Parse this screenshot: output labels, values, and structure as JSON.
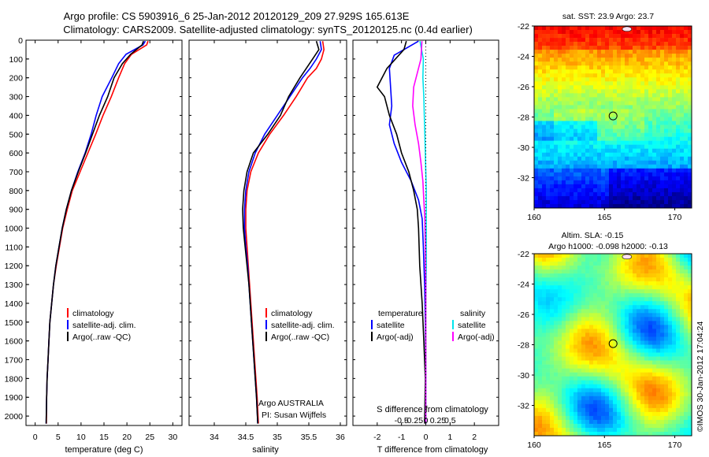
{
  "header": {
    "title_line1": "Argo profile: CS 5903916_6 25-Jan-2012 20120129_209 27.929S 165.613E",
    "title_line2": "Climatology: CARS2009. Satellite-adjusted climatology: synTS_20120125.nc (0.4d earlier)"
  },
  "colors": {
    "climatology": "#ff0000",
    "satellite": "#0000ff",
    "argo": "#000000",
    "sat_salinity": "#00e5ee",
    "argo_salinity_adj": "#ff00ff"
  },
  "chart_data": [
    {
      "type": "line",
      "name": "temperature-profile",
      "xlabel": "temperature (deg C)",
      "ylabel": "",
      "xlim": [
        -2,
        32
      ],
      "ylim": [
        2050,
        0
      ],
      "xticks": [
        0,
        5,
        10,
        15,
        20,
        25,
        30
      ],
      "yticks": [
        0,
        100,
        200,
        300,
        400,
        500,
        600,
        700,
        800,
        900,
        1000,
        1100,
        1200,
        1300,
        1400,
        1500,
        1600,
        1700,
        1800,
        1900,
        2000
      ],
      "legend": {
        "position": "middle-left",
        "entries": [
          "climatology",
          "satellite-adj. clim.",
          "Argo(..raw -QC)"
        ]
      },
      "series": [
        {
          "name": "climatology",
          "color": "#ff0000",
          "x": [
            24.6,
            24.3,
            21,
            19.5,
            18.2,
            16.6,
            14.8,
            13.2,
            11.5,
            9.8,
            8.1,
            7.0,
            6.0,
            5.3,
            4.6,
            4.0,
            3.6,
            3.2,
            3.0,
            2.8,
            2.6,
            2.5,
            2.45
          ],
          "y": [
            5,
            25,
            75,
            125,
            200,
            300,
            400,
            500,
            600,
            700,
            800,
            900,
            1000,
            1100,
            1200,
            1300,
            1400,
            1500,
            1600,
            1700,
            1800,
            1900,
            2040
          ]
        },
        {
          "name": "satellite-adj. clim.",
          "color": "#0000ff",
          "x": [
            24.0,
            23.5,
            19.8,
            18.2,
            16.7,
            14.6,
            13.3,
            12.2,
            10.9,
            9.3,
            7.9,
            6.8,
            5.9,
            5.2,
            4.5,
            4.0,
            3.6,
            3.2,
            3.0,
            2.8,
            2.6,
            2.5,
            2.4
          ],
          "y": [
            5,
            25,
            75,
            125,
            200,
            300,
            400,
            500,
            600,
            700,
            800,
            900,
            1000,
            1100,
            1200,
            1300,
            1400,
            1500,
            1600,
            1700,
            1800,
            1900,
            2040
          ]
        },
        {
          "name": "Argo(..raw -QC)",
          "color": "#000000",
          "x": [
            23.6,
            23.3,
            20.8,
            19.0,
            17.2,
            15.8,
            14.0,
            12.5,
            11.0,
            9.4,
            7.9,
            6.8,
            5.9,
            5.2,
            4.5,
            4.0,
            3.6,
            3.2,
            3.0,
            2.8,
            2.6,
            2.5,
            2.4
          ],
          "y": [
            5,
            25,
            75,
            125,
            200,
            300,
            400,
            500,
            600,
            700,
            800,
            900,
            1000,
            1100,
            1200,
            1300,
            1400,
            1500,
            1600,
            1700,
            1800,
            1900,
            2040
          ]
        }
      ]
    },
    {
      "type": "line",
      "name": "salinity-profile",
      "xlabel": "salinity",
      "ylabel": "",
      "xlim": [
        33.6,
        36.1
      ],
      "ylim": [
        2050,
        0
      ],
      "xticks": [
        34,
        34.5,
        35,
        35.5,
        36
      ],
      "legend": {
        "position": "middle-right",
        "entries": [
          "climatology",
          "satellite-adj. clim.",
          "Argo(..raw -QC)"
        ]
      },
      "annotation": {
        "line1": "Argo AUSTRALIA",
        "line2": "PI: Susan Wijffels"
      },
      "series": [
        {
          "name": "climatology",
          "color": "#ff0000",
          "x": [
            35.72,
            35.74,
            35.7,
            35.62,
            35.48,
            35.3,
            35.1,
            34.88,
            34.7,
            34.58,
            34.52,
            34.5,
            34.5,
            34.52,
            34.54,
            34.56,
            34.58,
            34.6,
            34.62,
            34.64,
            34.66,
            34.68,
            34.7
          ],
          "y": [
            5,
            50,
            100,
            150,
            200,
            300,
            400,
            500,
            600,
            700,
            800,
            900,
            1000,
            1100,
            1200,
            1300,
            1400,
            1500,
            1600,
            1700,
            1800,
            1900,
            2040
          ]
        },
        {
          "name": "satellite-adj. clim.",
          "color": "#0000ff",
          "x": [
            35.68,
            35.7,
            35.62,
            35.52,
            35.4,
            35.2,
            35.0,
            34.8,
            34.65,
            34.55,
            34.5,
            34.48,
            34.48,
            34.5,
            34.53,
            34.55,
            34.57,
            34.59,
            34.61,
            34.63,
            34.65,
            34.67,
            34.69
          ],
          "y": [
            5,
            50,
            100,
            150,
            200,
            300,
            400,
            500,
            600,
            700,
            800,
            900,
            1000,
            1100,
            1200,
            1300,
            1400,
            1500,
            1600,
            1700,
            1800,
            1900,
            2040
          ]
        },
        {
          "name": "Argo(..raw -QC)",
          "color": "#000000",
          "x": [
            35.62,
            35.66,
            35.56,
            35.46,
            35.36,
            35.18,
            35.05,
            34.85,
            34.62,
            34.52,
            34.47,
            34.45,
            34.46,
            34.49,
            34.52,
            34.55,
            34.57,
            34.59,
            34.61,
            34.63,
            34.65,
            34.67,
            34.69
          ],
          "y": [
            5,
            50,
            100,
            150,
            200,
            300,
            400,
            500,
            600,
            700,
            800,
            900,
            1000,
            1100,
            1200,
            1300,
            1400,
            1500,
            1600,
            1700,
            1800,
            1900,
            2040
          ]
        }
      ]
    },
    {
      "type": "line",
      "name": "difference-profile",
      "xlabel": "T difference from climatology",
      "xlabel_top": "S difference from climatology",
      "xlim": [
        -3,
        3
      ],
      "ylim": [
        2050,
        0
      ],
      "xticks_T": [
        -2,
        -1,
        0,
        1,
        2
      ],
      "xticks_S": [
        -0.5,
        -0.25,
        0,
        0.25,
        0.5
      ],
      "xticks_S_labels": [
        "-0.5",
        "-0.25",
        "0",
        "0.25",
        "0.5"
      ],
      "zero_line": "dotted",
      "legend": {
        "position": "middle",
        "temperature_header": "temperature",
        "salinity_header": "salinity",
        "entries": [
          "satellite",
          "Argo(-adj)",
          "satellite",
          "Argo(-adj)"
        ]
      },
      "series": [
        {
          "name": "temperature satellite",
          "color": "#0000ff",
          "x": [
            -0.3,
            -1.3,
            -1.5,
            -1.45,
            -1.4,
            -1.5,
            -1.3,
            -1.0,
            -0.6,
            -0.3,
            -0.15,
            -0.1,
            -0.05,
            -0.02,
            0,
            0
          ],
          "y": [
            5,
            80,
            150,
            250,
            350,
            450,
            550,
            650,
            750,
            850,
            950,
            1100,
            1300,
            1500,
            1800,
            2040
          ]
        },
        {
          "name": "temperature Argo(-adj)",
          "color": "#000000",
          "x": [
            -0.8,
            -0.9,
            -1.6,
            -2.0,
            -1.7,
            -1.5,
            -1.2,
            -1.0,
            -0.7,
            -0.5,
            -0.35,
            -0.3,
            -0.25,
            -0.15,
            -0.08,
            -0.02,
            -0.05
          ],
          "y": [
            5,
            50,
            150,
            250,
            300,
            400,
            500,
            600,
            700,
            800,
            900,
            1000,
            1200,
            1400,
            1600,
            1800,
            2040
          ]
        },
        {
          "name": "salinity satellite",
          "color": "#00e5ee",
          "x": [
            -0.12,
            -0.05,
            -0.06,
            -0.04,
            -0.03,
            -0.02,
            -0.01,
            0.0,
            0.01,
            0.01,
            0.01,
            0.01,
            0.0,
            0.0,
            0.0,
            0.0
          ],
          "y": [
            5,
            100,
            200,
            300,
            400,
            500,
            600,
            700,
            800,
            900,
            1000,
            1200,
            1400,
            1600,
            1800,
            2040
          ]
        },
        {
          "name": "salinity Argo(-adj)",
          "color": "#ff00ff",
          "x": [
            -0.08,
            -0.1,
            -0.25,
            -0.27,
            -0.22,
            -0.15,
            -0.1,
            -0.06,
            -0.04,
            -0.02,
            -0.01,
            0.0,
            0.0,
            0.0,
            0.0
          ],
          "y": [
            5,
            100,
            250,
            350,
            450,
            550,
            650,
            750,
            850,
            950,
            1100,
            1300,
            1500,
            1700,
            2040
          ]
        }
      ]
    },
    {
      "type": "heatmap",
      "name": "sst-map",
      "title": "sat. SST: 23.9  Argo: 23.7",
      "xlim": [
        160,
        171.2
      ],
      "ylim": [
        -34,
        -22
      ],
      "xticks": [
        160,
        165,
        170
      ],
      "yticks": [
        -22,
        -24,
        -26,
        -28,
        -30,
        -32
      ],
      "marker": {
        "lon": 165.613,
        "lat": -27.929
      }
    },
    {
      "type": "heatmap",
      "name": "sla-map",
      "title_line1": "Altim. SLA: -0.15",
      "title_line2": "Argo h1000: -0.098  h2000: -0.13",
      "xlim": [
        160,
        171.2
      ],
      "ylim": [
        -34,
        -22
      ],
      "xticks": [
        160,
        165,
        170
      ],
      "yticks": [
        -22,
        -24,
        -26,
        -28,
        -30,
        -32
      ],
      "marker": {
        "lon": 165.613,
        "lat": -27.929
      }
    }
  ],
  "footer": {
    "credit": "©IMOS 30-Jan-2012 17:04:24"
  }
}
